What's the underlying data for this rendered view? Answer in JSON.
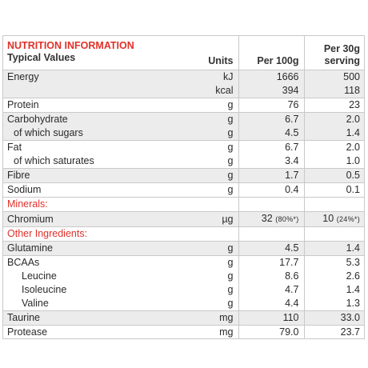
{
  "header": {
    "title": "NUTRITION INFORMATION",
    "subtitle": "Typical Values",
    "units": "Units",
    "per100": "Per 100g",
    "per30_line1": "Per 30g",
    "per30_line2": "serving"
  },
  "rows": {
    "energy_label": "Energy",
    "energy_kj_unit": "kJ",
    "energy_kj_100": "1666",
    "energy_kj_30": "500",
    "energy_kcal_unit": "kcal",
    "energy_kcal_100": "394",
    "energy_kcal_30": "118",
    "protein_label": "Protein",
    "protein_unit": "g",
    "protein_100": "76",
    "protein_30": "23",
    "carb_label": "Carbohydrate",
    "carb_unit": "g",
    "carb_100": "6.7",
    "carb_30": "2.0",
    "sugars_label": "of which sugars",
    "sugars_unit": "g",
    "sugars_100": "4.5",
    "sugars_30": "1.4",
    "fat_label": "Fat",
    "fat_unit": "g",
    "fat_100": "6.7",
    "fat_30": "2.0",
    "sat_label": "of which saturates",
    "sat_unit": "g",
    "sat_100": "3.4",
    "sat_30": "1.0",
    "fibre_label": "Fibre",
    "fibre_unit": "g",
    "fibre_100": "1.7",
    "fibre_30": "0.5",
    "sodium_label": "Sodium",
    "sodium_unit": "g",
    "sodium_100": "0.4",
    "sodium_30": "0.1",
    "minerals_label": "Minerals:",
    "chromium_label": "Chromium",
    "chromium_unit": "µg",
    "chromium_100": "32",
    "chromium_100_pct": "(80%*)",
    "chromium_30": "10",
    "chromium_30_pct": "(24%*)",
    "other_label": "Other Ingredients:",
    "glutamine_label": "Glutamine",
    "glutamine_unit": "g",
    "glutamine_100": "4.5",
    "glutamine_30": "1.4",
    "bcaa_label": "BCAAs",
    "bcaa_unit": "g",
    "bcaa_100": "17.7",
    "bcaa_30": "5.3",
    "leucine_label": "Leucine",
    "leucine_unit": "g",
    "leucine_100": "8.6",
    "leucine_30": "2.6",
    "isoleucine_label": "Isoleucine",
    "isoleucine_unit": "g",
    "isoleucine_100": "4.7",
    "isoleucine_30": "1.4",
    "valine_label": "Valine",
    "valine_unit": "g",
    "valine_100": "4.4",
    "valine_30": "1.3",
    "taurine_label": "Taurine",
    "taurine_unit": "mg",
    "taurine_100": "110",
    "taurine_30": "33.0",
    "protease_label": "Protease",
    "protease_unit": "mg",
    "protease_100": "79.0",
    "protease_30": "23.7"
  },
  "colors": {
    "accent": "#e0312a",
    "shade": "#ececec",
    "border": "#c9c9c9"
  }
}
